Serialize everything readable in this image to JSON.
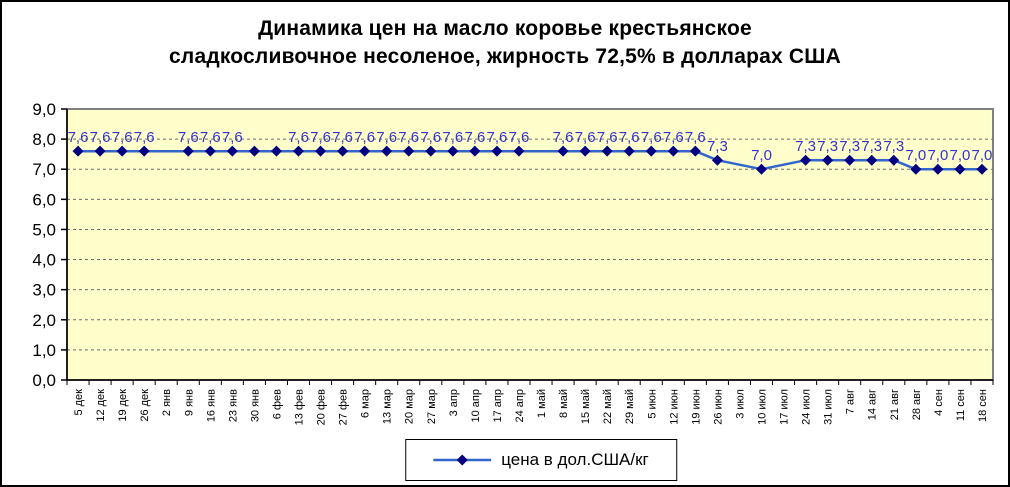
{
  "title": {
    "line1": "Динамика цен на масло коровье крестьянское",
    "line2": "сладкосливочное несоленое, жирность 72,5% в долларах США"
  },
  "legend": {
    "label": "цена в дол.США/кг",
    "position": "bottom"
  },
  "colors": {
    "plot_bg": "#FFFFCC",
    "plot_border": "#808080",
    "grid": "#6E6E6E",
    "line": "#3366CC",
    "marker": "#000080",
    "data_label": "#3333CC",
    "axis_text": "#000000"
  },
  "y_axis": {
    "min": 0,
    "max": 9,
    "step": 1,
    "tick_labels": [
      "9,0",
      "8,0",
      "7,0",
      "6,0",
      "5,0",
      "4,0",
      "3,0",
      "2,0",
      "1,0",
      "0,0"
    ]
  },
  "chart_data": {
    "type": "line",
    "title": "Динамика цен на масло коровье крестьянское сладкосливочное несоленое, жирность 72,5% в долларах США",
    "xlabel": "",
    "ylabel": "",
    "ylim": [
      0,
      9
    ],
    "grid": "horizontal-dashed",
    "legend_position": "bottom",
    "categories": [
      "5 дек",
      "12 дек",
      "19 дек",
      "26 дек",
      "2 янв",
      "9 янв",
      "16 янв",
      "23 янв",
      "30 янв",
      "6 фев",
      "13 фев",
      "20 фев",
      "27 фев",
      "6 мар",
      "13 мар",
      "20 мар",
      "27 мар",
      "3 апр",
      "10 апр",
      "17 апр",
      "24 апр",
      "1 май",
      "8 май",
      "15 май",
      "22 май",
      "29 май",
      "5 июн",
      "12 июн",
      "19 июн",
      "26 июн",
      "3 июл",
      "10 июл",
      "17 июл",
      "24 июл",
      "31 июл",
      "7 авг",
      "14 авг",
      "21 авг",
      "28 авг",
      "4 сен",
      "11 сен",
      "18 сен"
    ],
    "series": [
      {
        "name": "цена в дол.США/кг",
        "values": [
          7.6,
          7.6,
          7.6,
          7.6,
          null,
          7.6,
          7.6,
          7.6,
          7.6,
          7.6,
          7.6,
          7.6,
          7.6,
          7.6,
          7.6,
          7.6,
          7.6,
          7.6,
          7.6,
          7.6,
          7.6,
          null,
          7.6,
          7.6,
          7.6,
          7.6,
          7.6,
          7.6,
          7.6,
          7.3,
          null,
          7.0,
          null,
          7.3,
          7.3,
          7.3,
          7.3,
          7.3,
          7.0,
          7.0,
          7.0,
          7.0
        ]
      }
    ],
    "point_labels": [
      "7,6",
      "7,6",
      "7,6",
      "7,6",
      null,
      "7,6",
      "7,6",
      "7,6",
      null,
      null,
      "7,6",
      "7,6",
      "7,6",
      "7,6",
      "7,6",
      "7,6",
      "7,6",
      "7,6",
      "7,6",
      "7,6",
      "7,6",
      null,
      "7,6",
      "7,6",
      "7,6",
      "7,6",
      "7,6",
      "7,6",
      "7,6",
      "7,3",
      null,
      "7,0",
      null,
      "7,3",
      "7,3",
      "7,3",
      "7,3",
      "7,3",
      "7,0",
      "7,0",
      "7,0",
      "7,0"
    ]
  }
}
